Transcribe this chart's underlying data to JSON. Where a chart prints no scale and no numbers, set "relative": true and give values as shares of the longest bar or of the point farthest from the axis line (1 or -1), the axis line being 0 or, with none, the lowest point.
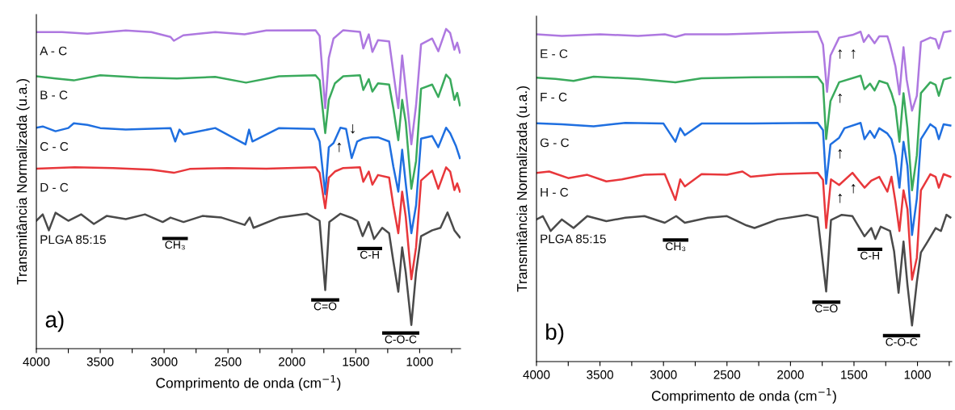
{
  "chart_data": [
    {
      "type": "line",
      "relative": true,
      "xlabel": "Comprimento de onda (cm$^{−1}$)",
      "ylabel": "Transmitância Normalizada (u.a.)",
      "legend": false,
      "grid": false,
      "xlim": [
        4000,
        680
      ],
      "xticks": [
        4000,
        {
          "value": 3750,
          "label": null
        },
        3500,
        {
          "value": 3250,
          "label": null
        },
        3000,
        {
          "value": 2750,
          "label": null
        },
        2500,
        {
          "value": 2250,
          "label": null
        },
        2000,
        {
          "value": 1750,
          "label": null
        },
        1500,
        {
          "value": 1250,
          "label": null
        },
        1000,
        {
          "value": 750,
          "label": null
        }
      ],
      "series": [
        {
          "name": "A - C",
          "color": "#ae78e0",
          "x": [
            4000,
            3800,
            3600,
            3300,
            3100,
            2950,
            2924,
            2850,
            2600,
            2370,
            2200,
            1815,
            1783,
            1739,
            1711,
            1674,
            1598,
            1467,
            1441,
            1398,
            1370,
            1326,
            1239,
            1206,
            1167,
            1137,
            1109,
            1065,
            1028,
            989,
            902,
            854,
            793,
            761,
            728,
            706,
            685
          ],
          "values": [
            0.99,
            0.99,
            0.985,
            0.995,
            0.99,
            0.975,
            0.963,
            0.98,
            0.99,
            0.983,
            0.995,
            0.996,
            0.978,
            0.752,
            0.909,
            0.97,
            0.996,
            0.991,
            0.939,
            0.983,
            0.928,
            0.965,
            0.961,
            0.865,
            0.752,
            0.917,
            0.813,
            0.639,
            0.761,
            0.952,
            0.97,
            0.93,
            1.0,
            0.987,
            0.935,
            0.957,
            0.926
          ]
        },
        {
          "name": "B - C",
          "color": "#3aaa5c",
          "x": [
            4000,
            3850,
            3707,
            3500,
            3200,
            2900,
            2600,
            2359,
            2100,
            1815,
            1783,
            1739,
            1711,
            1663,
            1598,
            1467,
            1441,
            1398,
            1370,
            1326,
            1239,
            1206,
            1167,
            1137,
            1109,
            1065,
            1028,
            989,
            902,
            854,
            793,
            761,
            728,
            706,
            685
          ],
          "values": [
            0.852,
            0.845,
            0.839,
            0.855,
            0.848,
            0.845,
            0.85,
            0.832,
            0.852,
            0.855,
            0.84,
            0.674,
            0.778,
            0.83,
            0.852,
            0.855,
            0.809,
            0.843,
            0.804,
            0.83,
            0.826,
            0.752,
            0.652,
            0.778,
            0.709,
            0.5,
            0.587,
            0.813,
            0.826,
            0.787,
            0.857,
            0.843,
            0.778,
            0.8,
            0.761
          ]
        },
        {
          "name": "C - C",
          "color": "#1f6fe0",
          "x": [
            4000,
            3950,
            3850,
            3750,
            3707,
            3600,
            3500,
            3300,
            2950,
            2913,
            2880,
            2848,
            2600,
            2363,
            2335,
            2309,
            2100,
            1826,
            1783,
            1739,
            1711,
            1674,
            1620,
            1576,
            1532,
            1489,
            1441,
            1380,
            1326,
            1239,
            1206,
            1167,
            1137,
            1109,
            1065,
            1028,
            989,
            902,
            854,
            793,
            761,
            717,
            685
          ],
          "values": [
            0.691,
            0.695,
            0.68,
            0.69,
            0.705,
            0.7,
            0.69,
            0.685,
            0.69,
            0.648,
            0.685,
            0.67,
            0.69,
            0.639,
            0.685,
            0.648,
            0.69,
            0.687,
            0.648,
            0.483,
            0.63,
            0.643,
            0.691,
            0.687,
            0.596,
            0.648,
            0.657,
            0.661,
            0.661,
            0.648,
            0.57,
            0.491,
            0.622,
            0.517,
            0.361,
            0.448,
            0.657,
            0.665,
            0.63,
            0.691,
            0.674,
            0.635,
            0.596
          ]
        },
        {
          "name": "D - C",
          "color": "#e8373b",
          "x": [
            4000,
            3700,
            3400,
            3100,
            2924,
            2800,
            2500,
            2200,
            1815,
            1783,
            1739,
            1711,
            1663,
            1598,
            1467,
            1441,
            1398,
            1370,
            1326,
            1239,
            1206,
            1167,
            1137,
            1109,
            1065,
            1028,
            989,
            902,
            854,
            793,
            761,
            728,
            706,
            685
          ],
          "values": [
            0.563,
            0.567,
            0.565,
            0.56,
            0.55,
            0.562,
            0.565,
            0.563,
            0.567,
            0.55,
            0.439,
            0.535,
            0.554,
            0.565,
            0.567,
            0.522,
            0.554,
            0.513,
            0.543,
            0.535,
            0.448,
            0.361,
            0.491,
            0.413,
            0.217,
            0.317,
            0.526,
            0.557,
            0.5,
            0.567,
            0.554,
            0.496,
            0.517,
            0.491
          ]
        },
        {
          "name": "PLGA 85:15",
          "color": "#4a4a4a",
          "x": [
            4000,
            3950,
            3902,
            3850,
            3750,
            3650,
            3550,
            3450,
            3300,
            3150,
            3011,
            2950,
            2848,
            2700,
            2550,
            2370,
            2330,
            2300,
            2100,
            1880,
            1783,
            1739,
            1707,
            1620,
            1532,
            1489,
            1446,
            1398,
            1357,
            1293,
            1239,
            1206,
            1167,
            1137,
            1109,
            1065,
            1028,
            989,
            902,
            837,
            782,
            728,
            685
          ],
          "values": [
            0.4,
            0.42,
            0.37,
            0.425,
            0.4,
            0.42,
            0.39,
            0.415,
            0.405,
            0.42,
            0.396,
            0.41,
            0.396,
            0.415,
            0.41,
            0.387,
            0.41,
            0.378,
            0.41,
            0.422,
            0.4,
            0.183,
            0.396,
            0.422,
            0.409,
            0.4,
            0.352,
            0.396,
            0.343,
            0.378,
            0.361,
            0.274,
            0.178,
            0.317,
            0.239,
            0.074,
            0.239,
            0.352,
            0.37,
            0.378,
            0.426,
            0.37,
            0.348
          ]
        }
      ],
      "annotations": [
        "a)",
        "CH₃",
        "C-H",
        "C=O",
        "C-O-C",
        "↑",
        "↓"
      ]
    },
    {
      "type": "line",
      "relative": true,
      "xlabel": "Comprimento de onda (cm$^{−1}$)",
      "ylabel": "Transmitância Normalizada (u.a.)",
      "legend": false,
      "grid": false,
      "xlim": [
        4000,
        730
      ],
      "xticks": [
        4000,
        {
          "value": 3750,
          "label": null
        },
        3500,
        {
          "value": 3250,
          "label": null
        },
        3000,
        {
          "value": 2750,
          "label": null
        },
        2500,
        {
          "value": 2250,
          "label": null
        },
        2000,
        {
          "value": 1750,
          "label": null
        },
        1500,
        {
          "value": 1250,
          "label": null
        },
        1000,
        {
          "value": 750,
          "label": null
        }
      ],
      "series": [
        {
          "name": "E - C",
          "color": "#ae78e0",
          "x": [
            4000,
            3800,
            3500,
            3200,
            2990,
            2906,
            2830,
            2500,
            2100,
            1786,
            1744,
            1712,
            1685,
            1617,
            1512,
            1448,
            1423,
            1385,
            1338,
            1301,
            1237,
            1216,
            1174,
            1142,
            1110,
            1085,
            1043,
            1005,
            973,
            899,
            857,
            832,
            794,
            741
          ],
          "values": [
            0.99,
            0.985,
            0.99,
            0.985,
            0.99,
            0.982,
            0.99,
            0.99,
            0.995,
            0.998,
            0.959,
            0.816,
            0.926,
            0.98,
            0.988,
            0.998,
            0.967,
            0.988,
            0.963,
            0.984,
            0.984,
            0.959,
            0.894,
            0.808,
            0.951,
            0.853,
            0.759,
            0.804,
            0.967,
            0.98,
            0.975,
            0.947,
            0.996,
            1.0
          ]
        },
        {
          "name": "F - C",
          "color": "#3aaa5c",
          "x": [
            4000,
            3850,
            3708,
            3550,
            3200,
            2906,
            2700,
            2300,
            1786,
            1744,
            1719,
            1685,
            1617,
            1448,
            1417,
            1374,
            1338,
            1301,
            1237,
            1205,
            1174,
            1142,
            1110,
            1079,
            1043,
            1005,
            973,
            899,
            857,
            832,
            794,
            741
          ],
          "values": [
            0.859,
            0.855,
            0.849,
            0.862,
            0.855,
            0.845,
            0.857,
            0.86,
            0.861,
            0.84,
            0.673,
            0.788,
            0.845,
            0.865,
            0.824,
            0.841,
            0.82,
            0.849,
            0.841,
            0.812,
            0.771,
            0.665,
            0.812,
            0.706,
            0.518,
            0.624,
            0.812,
            0.845,
            0.837,
            0.804,
            0.853,
            0.859
          ]
        },
        {
          "name": "G - C",
          "color": "#1f6fe0",
          "x": [
            4000,
            3800,
            3550,
            3300,
            3000,
            2906,
            2868,
            2832,
            2700,
            2300,
            1786,
            1744,
            1719,
            1685,
            1617,
            1575,
            1448,
            1417,
            1374,
            1338,
            1301,
            1237,
            1205,
            1174,
            1142,
            1110,
            1079,
            1043,
            1005,
            973,
            899,
            857,
            832,
            794,
            741
          ],
          "values": [
            0.721,
            0.718,
            0.712,
            0.722,
            0.72,
            0.665,
            0.706,
            0.685,
            0.72,
            0.72,
            0.722,
            0.7,
            0.538,
            0.657,
            0.677,
            0.706,
            0.722,
            0.673,
            0.698,
            0.677,
            0.706,
            0.69,
            0.673,
            0.624,
            0.526,
            0.665,
            0.592,
            0.383,
            0.493,
            0.673,
            0.718,
            0.706,
            0.673,
            0.718,
            0.714
          ]
        },
        {
          "name": "H - C",
          "color": "#e8373b",
          "x": [
            4000,
            3900,
            3750,
            3600,
            3450,
            3328,
            3150,
            2990,
            2906,
            2868,
            2832,
            2700,
            2500,
            2378,
            2314,
            2100,
            1786,
            1744,
            1719,
            1681,
            1617,
            1512,
            1417,
            1364,
            1301,
            1237,
            1205,
            1174,
            1142,
            1110,
            1079,
            1043,
            1005,
            973,
            899,
            857,
            832,
            794,
            741
          ],
          "values": [
            0.571,
            0.575,
            0.555,
            0.565,
            0.545,
            0.551,
            0.565,
            0.567,
            0.489,
            0.551,
            0.53,
            0.567,
            0.565,
            0.575,
            0.559,
            0.567,
            0.571,
            0.55,
            0.404,
            0.551,
            0.534,
            0.571,
            0.526,
            0.547,
            0.559,
            0.514,
            0.559,
            0.485,
            0.395,
            0.518,
            0.461,
            0.248,
            0.314,
            0.518,
            0.567,
            0.559,
            0.526,
            0.567,
            0.559
          ]
        },
        {
          "name": "PLGA 85:15",
          "color": "#4a4a4a",
          "x": [
            4000,
            3950,
            3888,
            3800,
            3708,
            3600,
            3450,
            3300,
            3150,
            2990,
            2900,
            2832,
            2650,
            2500,
            2346,
            2283,
            2100,
            1871,
            1786,
            1719,
            1681,
            1596,
            1512,
            1417,
            1364,
            1332,
            1290,
            1216,
            1184,
            1149,
            1110,
            1079,
            1043,
            1005,
            973,
            920,
            857,
            815,
            772,
            741
          ],
          "values": [
            0.43,
            0.44,
            0.395,
            0.43,
            0.404,
            0.44,
            0.425,
            0.435,
            0.44,
            0.42,
            0.44,
            0.42,
            0.435,
            0.44,
            0.412,
            0.404,
            0.43,
            0.444,
            0.436,
            0.212,
            0.428,
            0.444,
            0.44,
            0.379,
            0.404,
            0.371,
            0.408,
            0.395,
            0.333,
            0.208,
            0.363,
            0.232,
            0.109,
            0.24,
            0.33,
            0.363,
            0.404,
            0.395,
            0.444,
            0.436
          ]
        }
      ],
      "annotations": [
        "b)",
        "CH₃",
        "C-H",
        "C=O",
        "C-O-C",
        "↑",
        "↑",
        "↑",
        "↑",
        "↑",
        "↑"
      ]
    }
  ]
}
